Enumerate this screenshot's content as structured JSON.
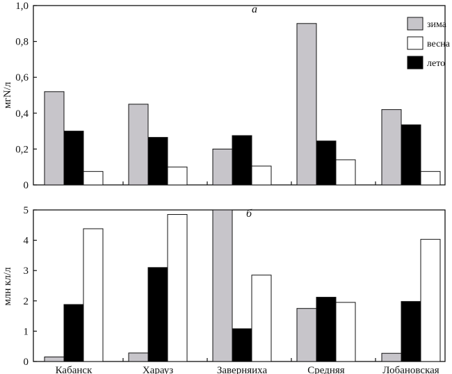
{
  "chart_data": [
    {
      "type": "bar",
      "panel_label": "а",
      "ylabel": "мгN/л",
      "ylim": [
        0,
        1.0
      ],
      "yticks": [
        0,
        0.2,
        0.4,
        0.6,
        0.8,
        1.0
      ],
      "ytick_labels": [
        "0",
        "0,2",
        "0,4",
        "0,6",
        "0,8",
        "1,0"
      ],
      "categories": [
        "Кабанск",
        "Харауз",
        "Заверняиха",
        "Средняя",
        "Лобановская"
      ],
      "series": [
        {
          "name": "зима",
          "values": [
            0.52,
            0.45,
            0.2,
            0.9,
            0.42
          ]
        },
        {
          "name": "лето",
          "values": [
            0.3,
            0.265,
            0.275,
            0.245,
            0.335
          ]
        },
        {
          "name": "весна",
          "values": [
            0.075,
            0.1,
            0.105,
            0.14,
            0.075
          ]
        }
      ],
      "legend": {
        "placement": "top-right",
        "entries": [
          {
            "label": "зима",
            "color": "#c7c5ca"
          },
          {
            "label": "весна",
            "color": "#ffffff"
          },
          {
            "label": "лето",
            "color": "#000000"
          }
        ]
      }
    },
    {
      "type": "bar",
      "panel_label": "б",
      "ylabel": "млн кл/л",
      "ylim": [
        0,
        5
      ],
      "yticks": [
        0,
        1,
        2,
        3,
        4,
        5
      ],
      "ytick_labels": [
        "0",
        "1",
        "2",
        "3",
        "4",
        "5"
      ],
      "categories": [
        "Кабанск",
        "Харауз",
        "Заверняиха",
        "Средняя",
        "Лобановская"
      ],
      "series": [
        {
          "name": "зима",
          "values": [
            0.15,
            0.28,
            5.0,
            1.75,
            0.27
          ]
        },
        {
          "name": "лето",
          "values": [
            1.88,
            3.1,
            1.08,
            2.12,
            1.98
          ]
        },
        {
          "name": "весна",
          "values": [
            4.38,
            4.85,
            2.85,
            1.95,
            4.03
          ]
        }
      ]
    }
  ],
  "colors": {
    "зима": "#c7c5ca",
    "лето": "#000000",
    "весна": "#ffffff",
    "axis": "#111111"
  }
}
